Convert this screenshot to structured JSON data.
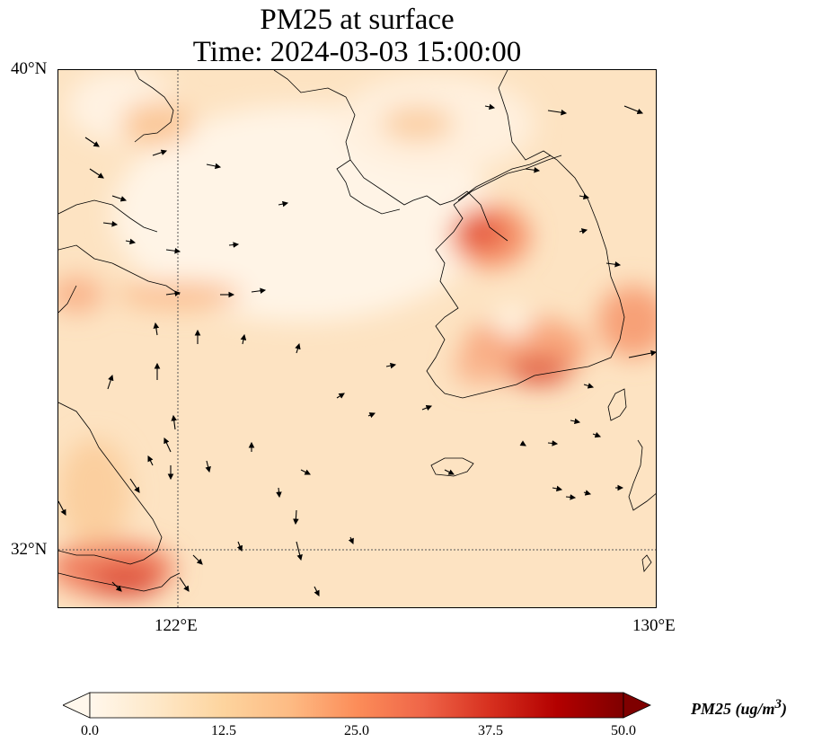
{
  "title_line1": "PM25 at surface",
  "title_line2": "Time: 2024-03-03 15:00:00",
  "lat_labels": [
    "40°N",
    "32°N"
  ],
  "lon_labels": [
    "122°E",
    "130°E"
  ],
  "colorbar": {
    "label": "PM25 (ug/m",
    "label_sup": "3",
    "label_close": ")",
    "ticks": [
      "0.0",
      "12.5",
      "25.0",
      "37.5",
      "50.0"
    ],
    "range": [
      0,
      50
    ],
    "colormap": "OrRd",
    "colors": [
      "#fff7ec",
      "#fee8c8",
      "#fdd49e",
      "#fdbb84",
      "#fc8d59",
      "#ef6548",
      "#d7301f",
      "#b30000",
      "#7f0000"
    ]
  },
  "map": {
    "extent_lon": [
      120,
      130
    ],
    "extent_lat": [
      31,
      40
    ],
    "gridlines_lon": [
      122
    ],
    "gridlines_lat": [
      32
    ],
    "field": "PM25",
    "wind_vectors": true
  }
}
